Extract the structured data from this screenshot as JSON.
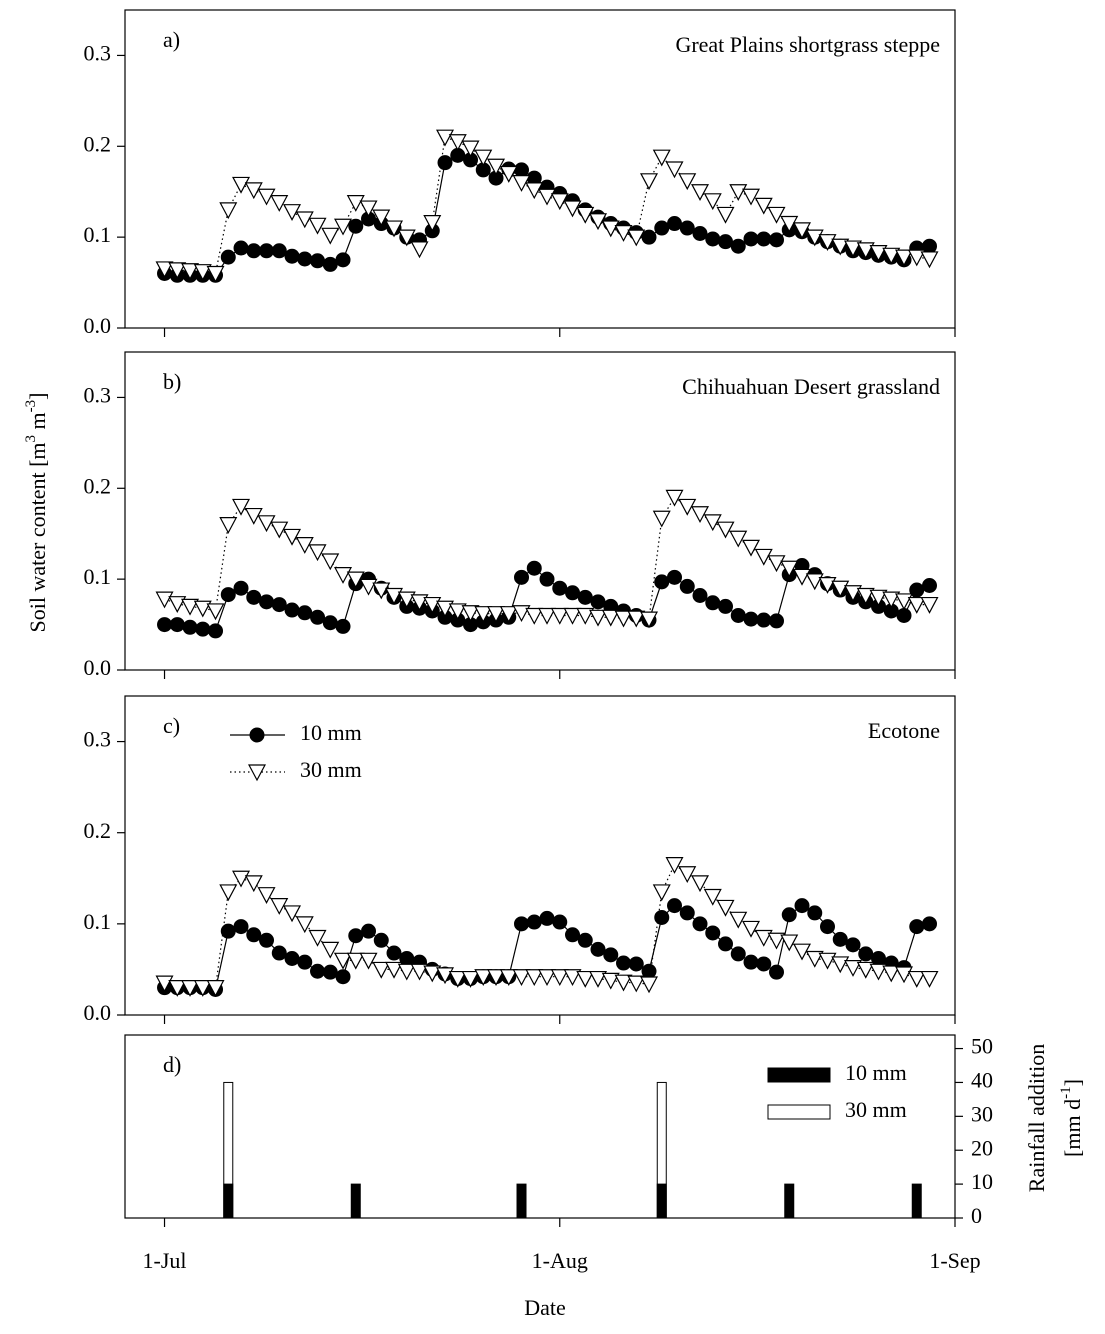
{
  "chart_data": [
    {
      "type": "line",
      "panel_label": "a)",
      "title": "Great Plains shortgrass steppe",
      "xlim": [
        -3.1,
        62
      ],
      "xticks": [
        0,
        31,
        62
      ],
      "ylim": [
        0,
        0.35
      ],
      "yticks": [
        {
          "value": 0,
          "label": "0.0"
        },
        0.1,
        0.2,
        0.3
      ],
      "x": [
        0,
        1,
        2,
        3,
        4,
        5,
        6,
        7,
        8,
        9,
        10,
        11,
        12,
        13,
        14,
        15,
        16,
        17,
        18,
        19,
        20,
        21,
        22,
        23,
        24,
        25,
        26,
        27,
        28,
        29,
        30,
        31,
        32,
        33,
        34,
        35,
        36,
        37,
        38,
        39,
        40,
        41,
        42,
        43,
        44,
        45,
        46,
        47,
        48,
        49,
        50,
        51,
        52,
        53,
        54,
        55,
        56,
        57,
        58,
        59,
        60
      ],
      "series": [
        {
          "color": "#000000",
          "marker": "circle",
          "marker_face": "#000000",
          "linestyle": "solid",
          "values": [
            0.06,
            0.058,
            0.058,
            0.058,
            0.058,
            0.078,
            0.088,
            0.085,
            0.085,
            0.085,
            0.079,
            0.076,
            0.074,
            0.07,
            0.075,
            0.112,
            0.12,
            0.115,
            0.11,
            0.1,
            0.097,
            0.107,
            0.182,
            0.19,
            0.185,
            0.174,
            0.165,
            0.175,
            0.174,
            0.165,
            0.155,
            0.148,
            0.14,
            0.13,
            0.122,
            0.115,
            0.11,
            0.105,
            0.1,
            0.11,
            0.115,
            0.11,
            0.104,
            0.098,
            0.095,
            0.09,
            0.098,
            0.098,
            0.097,
            0.108,
            0.106,
            0.1,
            0.095,
            0.09,
            0.085,
            0.083,
            0.08,
            0.078,
            0.075,
            0.088,
            0.09
          ]
        },
        {
          "color": "#000000",
          "marker": "triangle-down",
          "marker_face": "#ffffff",
          "linestyle": "dotted",
          "values": [
            0.065,
            0.064,
            0.063,
            0.062,
            0.06,
            0.13,
            0.158,
            0.152,
            0.145,
            0.138,
            0.128,
            0.12,
            0.113,
            0.102,
            0.112,
            0.138,
            0.132,
            0.122,
            0.11,
            0.1,
            0.087,
            0.116,
            0.21,
            0.205,
            0.198,
            0.188,
            0.178,
            0.17,
            0.16,
            0.152,
            0.145,
            0.14,
            0.132,
            0.125,
            0.118,
            0.11,
            0.105,
            0.1,
            0.162,
            0.188,
            0.175,
            0.162,
            0.15,
            0.14,
            0.125,
            0.15,
            0.145,
            0.135,
            0.125,
            0.115,
            0.108,
            0.1,
            0.095,
            0.09,
            0.088,
            0.086,
            0.083,
            0.08,
            0.078,
            0.078,
            0.076
          ]
        }
      ]
    },
    {
      "type": "line",
      "panel_label": "b)",
      "title": "Chihuahuan Desert grassland",
      "ylabel_lines": [
        [
          "Soil water content [m",
          "3",
          " m",
          "-3",
          "]"
        ]
      ],
      "xlim": [
        -3.1,
        62
      ],
      "xticks": [
        0,
        31,
        62
      ],
      "ylim": [
        0,
        0.35
      ],
      "yticks": [
        {
          "value": 0,
          "label": "0.0"
        },
        0.1,
        0.2,
        0.3
      ],
      "x": [
        0,
        1,
        2,
        3,
        4,
        5,
        6,
        7,
        8,
        9,
        10,
        11,
        12,
        13,
        14,
        15,
        16,
        17,
        18,
        19,
        20,
        21,
        22,
        23,
        24,
        25,
        26,
        27,
        28,
        29,
        30,
        31,
        32,
        33,
        34,
        35,
        36,
        37,
        38,
        39,
        40,
        41,
        42,
        43,
        44,
        45,
        46,
        47,
        48,
        49,
        50,
        51,
        52,
        53,
        54,
        55,
        56,
        57,
        58,
        59,
        60
      ],
      "series": [
        {
          "color": "#000000",
          "marker": "circle",
          "marker_face": "#000000",
          "linestyle": "solid",
          "values": [
            0.05,
            0.05,
            0.047,
            0.045,
            0.043,
            0.083,
            0.09,
            0.08,
            0.075,
            0.072,
            0.066,
            0.063,
            0.058,
            0.052,
            0.048,
            0.095,
            0.1,
            0.09,
            0.08,
            0.07,
            0.068,
            0.065,
            0.058,
            0.055,
            0.05,
            0.053,
            0.055,
            0.058,
            0.102,
            0.112,
            0.1,
            0.09,
            0.085,
            0.08,
            0.075,
            0.07,
            0.065,
            0.06,
            0.055,
            0.097,
            0.102,
            0.092,
            0.082,
            0.074,
            0.07,
            0.06,
            0.056,
            0.055,
            0.054,
            0.105,
            0.115,
            0.105,
            0.095,
            0.088,
            0.08,
            0.075,
            0.07,
            0.065,
            0.06,
            0.088,
            0.093
          ]
        },
        {
          "color": "#000000",
          "marker": "triangle-down",
          "marker_face": "#ffffff",
          "linestyle": "dotted",
          "values": [
            0.078,
            0.073,
            0.07,
            0.068,
            0.065,
            0.16,
            0.18,
            0.17,
            0.162,
            0.155,
            0.147,
            0.138,
            0.13,
            0.12,
            0.105,
            0.1,
            0.092,
            0.088,
            0.082,
            0.078,
            0.075,
            0.072,
            0.068,
            0.065,
            0.063,
            0.062,
            0.062,
            0.062,
            0.063,
            0.06,
            0.06,
            0.06,
            0.06,
            0.06,
            0.058,
            0.058,
            0.057,
            0.057,
            0.056,
            0.167,
            0.19,
            0.18,
            0.172,
            0.163,
            0.155,
            0.145,
            0.135,
            0.125,
            0.118,
            0.112,
            0.103,
            0.098,
            0.094,
            0.09,
            0.085,
            0.082,
            0.08,
            0.078,
            0.076,
            0.072,
            0.072
          ]
        }
      ]
    },
    {
      "type": "line",
      "panel_label": "c)",
      "title": "Ecotone",
      "legend": "upper left",
      "xlim": [
        -3.1,
        62
      ],
      "xticks": [
        0,
        31,
        62
      ],
      "ylim": [
        0,
        0.35
      ],
      "yticks": [
        {
          "value": 0,
          "label": "0.0"
        },
        0.1,
        0.2,
        0.3
      ],
      "x": [
        0,
        1,
        2,
        3,
        4,
        5,
        6,
        7,
        8,
        9,
        10,
        11,
        12,
        13,
        14,
        15,
        16,
        17,
        18,
        19,
        20,
        21,
        22,
        23,
        24,
        25,
        26,
        27,
        28,
        29,
        30,
        31,
        32,
        33,
        34,
        35,
        36,
        37,
        38,
        39,
        40,
        41,
        42,
        43,
        44,
        45,
        46,
        47,
        48,
        49,
        50,
        51,
        52,
        53,
        54,
        55,
        56,
        57,
        58,
        59,
        60
      ],
      "series": [
        {
          "name": "10 mm",
          "color": "#000000",
          "marker": "circle",
          "marker_face": "#000000",
          "linestyle": "solid",
          "values": [
            0.03,
            0.03,
            0.03,
            0.03,
            0.028,
            0.092,
            0.097,
            0.088,
            0.082,
            0.068,
            0.062,
            0.058,
            0.048,
            0.047,
            0.042,
            0.087,
            0.092,
            0.082,
            0.068,
            0.062,
            0.058,
            0.05,
            0.045,
            0.04,
            0.04,
            0.042,
            0.042,
            0.042,
            0.1,
            0.102,
            0.106,
            0.102,
            0.088,
            0.082,
            0.072,
            0.066,
            0.057,
            0.056,
            0.048,
            0.107,
            0.12,
            0.112,
            0.1,
            0.09,
            0.078,
            0.067,
            0.058,
            0.056,
            0.047,
            0.11,
            0.12,
            0.112,
            0.097,
            0.083,
            0.077,
            0.067,
            0.062,
            0.057,
            0.052,
            0.097,
            0.1
          ]
        },
        {
          "name": "30 mm",
          "color": "#000000",
          "marker": "triangle-down",
          "marker_face": "#ffffff",
          "linestyle": "dotted",
          "values": [
            0.035,
            0.03,
            0.03,
            0.03,
            0.03,
            0.135,
            0.15,
            0.145,
            0.132,
            0.12,
            0.112,
            0.1,
            0.085,
            0.072,
            0.06,
            0.06,
            0.06,
            0.05,
            0.05,
            0.048,
            0.048,
            0.046,
            0.044,
            0.04,
            0.04,
            0.042,
            0.042,
            0.042,
            0.042,
            0.042,
            0.042,
            0.042,
            0.042,
            0.04,
            0.04,
            0.038,
            0.036,
            0.035,
            0.034,
            0.135,
            0.165,
            0.155,
            0.145,
            0.13,
            0.118,
            0.105,
            0.095,
            0.085,
            0.082,
            0.08,
            0.07,
            0.062,
            0.06,
            0.056,
            0.052,
            0.05,
            0.048,
            0.046,
            0.045,
            0.04,
            0.04
          ]
        }
      ]
    },
    {
      "type": "bar",
      "panel_label": "d)",
      "legend": "upper right",
      "y_axis_side": "right",
      "xlabel": "Date",
      "ylabel_lines": [
        [
          "Rainfall addition"
        ],
        [
          "[mm d",
          "-1",
          "]"
        ]
      ],
      "xlim": [
        -3.1,
        62
      ],
      "xticks": [
        {
          "value": 0,
          "label": "1-Jul"
        },
        {
          "value": 31,
          "label": "1-Aug"
        },
        {
          "value": 62,
          "label": "1-Sep"
        }
      ],
      "ylim": [
        0,
        54
      ],
      "yticks": [
        0,
        10,
        20,
        30,
        40,
        50
      ],
      "series": [
        {
          "name": "10 mm",
          "color": "#000000",
          "x": [
            5,
            15,
            28,
            39,
            49,
            59
          ],
          "values": [
            10,
            10,
            10,
            10,
            10,
            10
          ]
        },
        {
          "name": "30 mm",
          "color": "#ffffff",
          "x": [
            5,
            39
          ],
          "values": [
            40,
            40
          ]
        }
      ]
    }
  ]
}
